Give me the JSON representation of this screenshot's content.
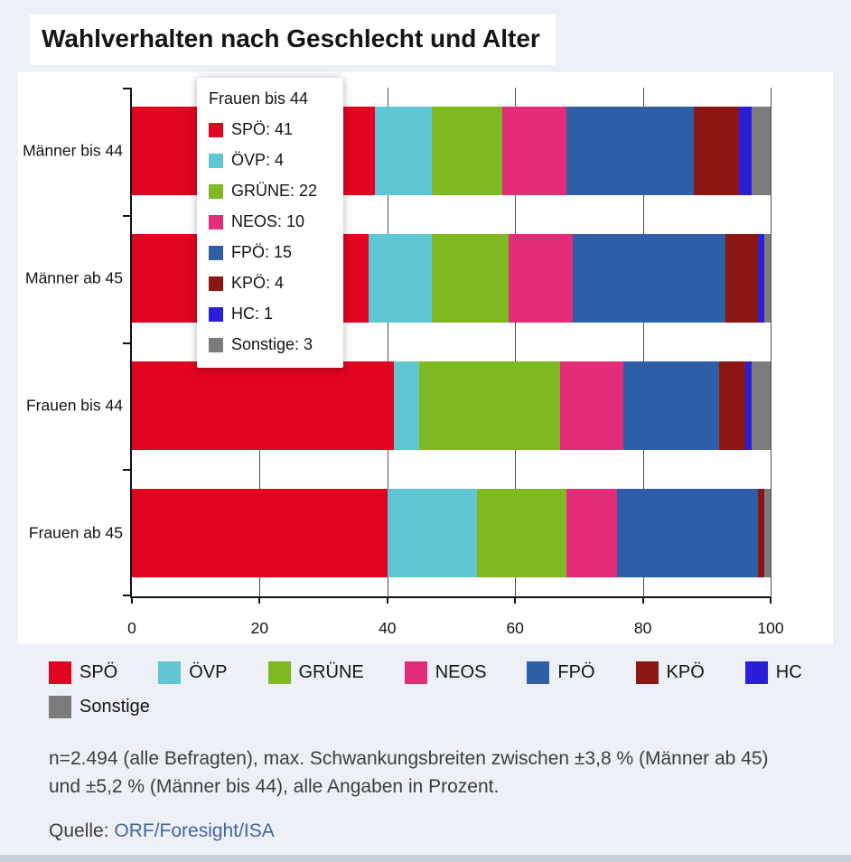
{
  "title": "Wahlverhalten nach Geschlecht und Alter",
  "chart_data": {
    "type": "bar",
    "orientation": "horizontal",
    "stacked": true,
    "unit": "percent",
    "categories": [
      "Männer bis 44",
      "Männer ab 45",
      "Frauen bis 44",
      "Frauen ab 45"
    ],
    "series": [
      {
        "name": "SPÖ",
        "color": "#e00420",
        "values": [
          38,
          37,
          41,
          40
        ]
      },
      {
        "name": "ÖVP",
        "color": "#5fc6d4",
        "values": [
          9,
          10,
          4,
          14
        ]
      },
      {
        "name": "GRÜNE",
        "color": "#80b822",
        "values": [
          11,
          12,
          22,
          14
        ]
      },
      {
        "name": "NEOS",
        "color": "#e32d78",
        "values": [
          10,
          10,
          10,
          8
        ]
      },
      {
        "name": "FPÖ",
        "color": "#2e5fa6",
        "values": [
          20,
          24,
          15,
          22
        ]
      },
      {
        "name": "KPÖ",
        "color": "#8b1612",
        "values": [
          7,
          5,
          4,
          1
        ]
      },
      {
        "name": "HC",
        "color": "#2b1ed9",
        "values": [
          2,
          1,
          1,
          0
        ]
      },
      {
        "name": "Sonstige",
        "color": "#7c7c7c",
        "values": [
          3,
          1,
          3,
          1
        ]
      }
    ],
    "xlim": [
      0,
      100
    ],
    "xticks": [
      0,
      20,
      40,
      60,
      80,
      100
    ],
    "grid": true,
    "legend_position": "bottom"
  },
  "tooltip": {
    "title": "Frauen bis 44",
    "items": [
      {
        "label": "SPÖ",
        "value": 41
      },
      {
        "label": "ÖVP",
        "value": 4
      },
      {
        "label": "GRÜNE",
        "value": 22
      },
      {
        "label": "NEOS",
        "value": 10
      },
      {
        "label": "FPÖ",
        "value": 15
      },
      {
        "label": "KPÖ",
        "value": 4
      },
      {
        "label": "HC",
        "value": 1
      },
      {
        "label": "Sonstige",
        "value": 3
      }
    ]
  },
  "note": "n=2.494 (alle Befragten), max. Schwankungsbreiten zwischen ±3,8 % (Männer ab 45) und ±5,2 % (Männer bis 44), alle Angaben in Prozent.",
  "source": {
    "prefix": "Quelle: ",
    "link": "ORF/Foresight/ISA"
  }
}
